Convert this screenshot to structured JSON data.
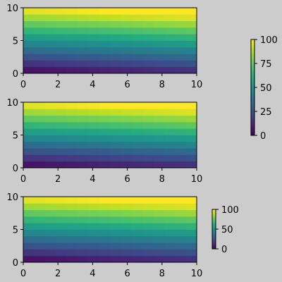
{
  "figure": {
    "background": "#cccccc"
  },
  "chart_data": [
    {
      "type": "heatmap",
      "colormap": "viridis",
      "x_edges": [
        0,
        0.625,
        1.25,
        1.875,
        2.5,
        3.125,
        3.75,
        4.375,
        5,
        5.625,
        6.25,
        6.875,
        7.5,
        8.125,
        8.75,
        9.375,
        10
      ],
      "y_edges": [
        0,
        1,
        2,
        3,
        4,
        5,
        6,
        7,
        8,
        9,
        10
      ],
      "value_formula": "x + 10*y (cell centres)",
      "xlim": [
        0,
        10
      ],
      "ylim": [
        0,
        10
      ],
      "xticks": [
        0,
        2,
        4,
        6,
        8,
        10
      ],
      "yticks": [
        0,
        5,
        10
      ],
      "xtick_labels": [
        "0",
        "2",
        "4",
        "6",
        "8",
        "10"
      ],
      "ytick_labels": [
        "0",
        "5",
        "10"
      ],
      "color_range": [
        0,
        100
      ]
    },
    {
      "type": "heatmap",
      "colormap": "viridis",
      "x_edges": [
        0,
        0.625,
        1.25,
        1.875,
        2.5,
        3.125,
        3.75,
        4.375,
        5,
        5.625,
        6.25,
        6.875,
        7.5,
        8.125,
        8.75,
        9.375,
        10
      ],
      "y_edges": [
        0,
        1,
        2,
        3,
        4,
        5,
        6,
        7,
        8,
        9,
        10
      ],
      "value_formula": "x + 10*y (cell centres)",
      "xlim": [
        0,
        10
      ],
      "ylim": [
        0,
        10
      ],
      "xticks": [
        0,
        2,
        4,
        6,
        8,
        10
      ],
      "yticks": [
        0,
        5,
        10
      ],
      "xtick_labels": [
        "0",
        "2",
        "4",
        "6",
        "8",
        "10"
      ],
      "ytick_labels": [
        "0",
        "5",
        "10"
      ],
      "color_range": [
        0,
        100
      ]
    },
    {
      "type": "heatmap",
      "colormap": "viridis",
      "x_edges": [
        0,
        0.625,
        1.25,
        1.875,
        2.5,
        3.125,
        3.75,
        4.375,
        5,
        5.625,
        6.25,
        6.875,
        7.5,
        8.125,
        8.75,
        9.375,
        10
      ],
      "y_edges": [
        0,
        1,
        2,
        3,
        4,
        5,
        6,
        7,
        8,
        9,
        10
      ],
      "value_formula": "x + 10*y (cell centres)",
      "xlim": [
        0,
        10
      ],
      "ylim": [
        0,
        10
      ],
      "xticks": [
        0,
        2,
        4,
        6,
        8,
        10
      ],
      "yticks": [
        0,
        5,
        10
      ],
      "xtick_labels": [
        "0",
        "2",
        "4",
        "6",
        "8",
        "10"
      ],
      "ytick_labels": [
        "0",
        "5",
        "10"
      ],
      "color_range": [
        0,
        100
      ]
    }
  ],
  "colorbars": [
    {
      "colormap": "viridis",
      "range": [
        0,
        100
      ],
      "ticks": [
        0,
        25,
        50,
        75,
        100
      ],
      "tick_labels": [
        "0",
        "25",
        "50",
        "75",
        "100"
      ]
    },
    {
      "colormap": "viridis",
      "range": [
        0,
        100
      ],
      "ticks": [
        0,
        50,
        100
      ],
      "tick_labels": [
        "0",
        "50",
        "100"
      ]
    }
  ]
}
